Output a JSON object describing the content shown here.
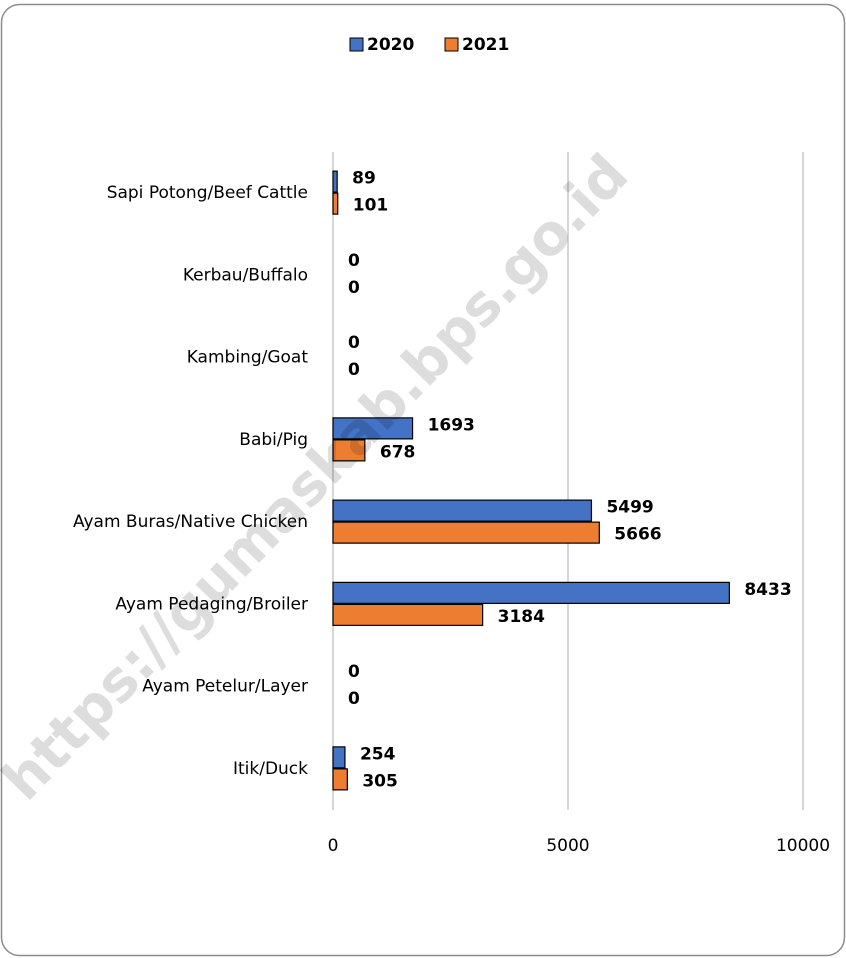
{
  "chart_data": {
    "type": "bar",
    "orientation": "horizontal",
    "categories": [
      "Sapi Potong/Beef Cattle",
      "Kerbau/Buffalo",
      "Kambing/Goat",
      "Babi/Pig",
      "Ayam Buras/Native Chicken",
      "Ayam Pedaging/Broiler",
      "Ayam Petelur/Layer",
      "Itik/Duck"
    ],
    "series": [
      {
        "name": "2020",
        "color": "#4472c4",
        "values": [
          89,
          0,
          0,
          1693,
          5499,
          8433,
          0,
          254
        ]
      },
      {
        "name": "2021",
        "color": "#ed7d31",
        "values": [
          101,
          0,
          0,
          678,
          5666,
          3184,
          0,
          305
        ]
      }
    ],
    "xlim": [
      0,
      10000
    ],
    "xticks": [
      0,
      5000,
      10000
    ],
    "grid": true,
    "legend": "top",
    "watermark": "https://gumaskab.bps.go.id"
  }
}
